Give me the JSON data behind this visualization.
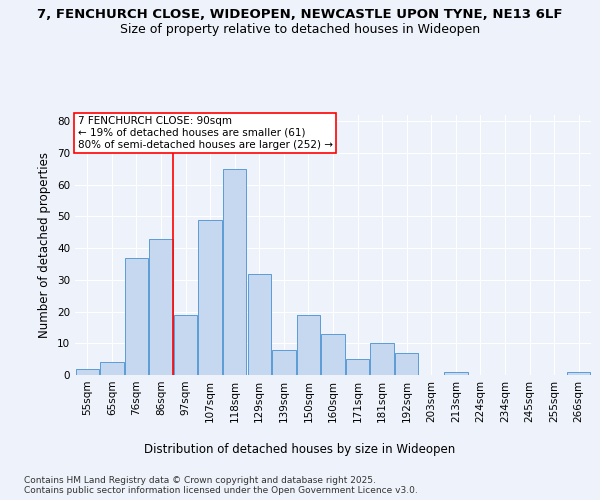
{
  "title_line1": "7, FENCHURCH CLOSE, WIDEOPEN, NEWCASTLE UPON TYNE, NE13 6LF",
  "title_line2": "Size of property relative to detached houses in Wideopen",
  "xlabel": "Distribution of detached houses by size in Wideopen",
  "ylabel": "Number of detached properties",
  "categories": [
    "55sqm",
    "65sqm",
    "76sqm",
    "86sqm",
    "97sqm",
    "107sqm",
    "118sqm",
    "129sqm",
    "139sqm",
    "150sqm",
    "160sqm",
    "171sqm",
    "181sqm",
    "192sqm",
    "203sqm",
    "213sqm",
    "224sqm",
    "234sqm",
    "245sqm",
    "255sqm",
    "266sqm"
  ],
  "values": [
    2,
    4,
    37,
    43,
    19,
    49,
    65,
    32,
    8,
    19,
    13,
    5,
    10,
    7,
    0,
    1,
    0,
    0,
    0,
    0,
    1
  ],
  "bar_color": "#c5d8f0",
  "bar_edge_color": "#5b9bd5",
  "annotation_text_line1": "7 FENCHURCH CLOSE: 90sqm",
  "annotation_text_line2": "← 19% of detached houses are smaller (61)",
  "annotation_text_line3": "80% of semi-detached houses are larger (252) →",
  "annotation_box_color": "white",
  "annotation_box_edge": "red",
  "vline_color": "red",
  "vline_x_index": 3,
  "ylim": [
    0,
    82
  ],
  "yticks": [
    0,
    10,
    20,
    30,
    40,
    50,
    60,
    70,
    80
  ],
  "background_color": "#eef2fa",
  "grid_color": "white",
  "footer_line1": "Contains HM Land Registry data © Crown copyright and database right 2025.",
  "footer_line2": "Contains public sector information licensed under the Open Government Licence v3.0.",
  "title_fontsize": 9.5,
  "subtitle_fontsize": 9,
  "axis_label_fontsize": 8.5,
  "tick_fontsize": 7.5,
  "annotation_fontsize": 7.5,
  "footer_fontsize": 6.5
}
